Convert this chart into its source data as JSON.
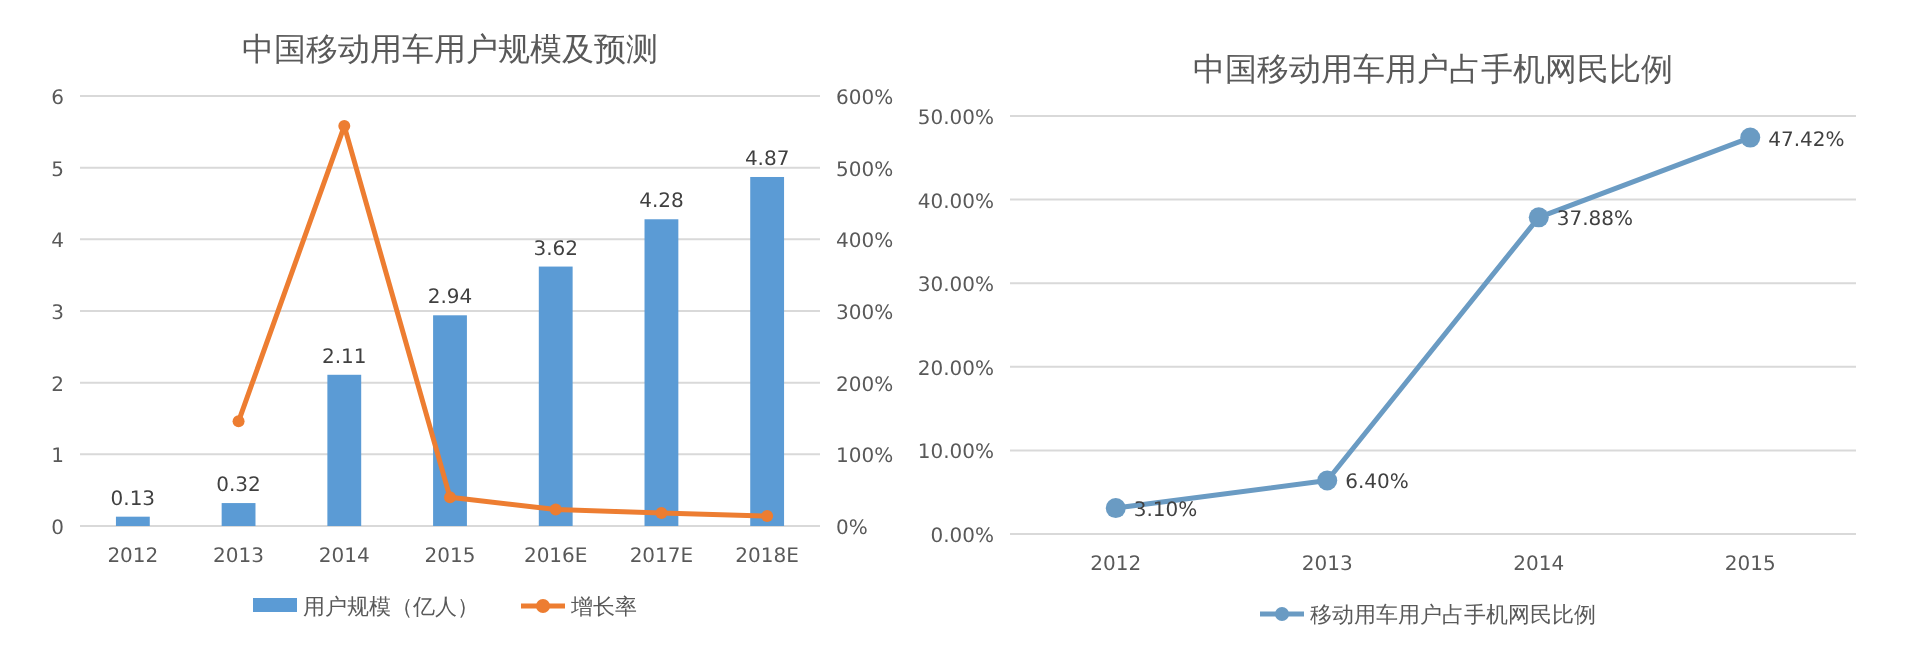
{
  "chart_data": [
    {
      "type": "bar",
      "title": "中国移动用车用户规模及预测",
      "categories": [
        "2012",
        "2013",
        "2014",
        "2015",
        "2016E",
        "2017E",
        "2018E"
      ],
      "series": [
        {
          "name": "用户规模（亿人）",
          "color": "#5b9bd5",
          "values": [
            0.13,
            0.32,
            2.11,
            2.94,
            3.62,
            4.28,
            4.87
          ],
          "value_labels": [
            "0.13",
            "0.32",
            "2.11",
            "2.94",
            "3.62",
            "4.28",
            "4.87"
          ]
        },
        {
          "name": "增长率",
          "type": "line",
          "axis": "y2",
          "color": "#ed7d31",
          "values": [
            null,
            146,
            558,
            40,
            23,
            18,
            14
          ]
        }
      ],
      "ylim": [
        0,
        6
      ],
      "yticks": [
        0,
        1,
        2,
        3,
        4,
        5,
        6
      ],
      "y2lim": [
        0,
        600
      ],
      "y2ticks": [
        {
          "value": 0,
          "label": "0%"
        },
        {
          "value": 100,
          "label": "100%"
        },
        {
          "value": 200,
          "label": "200%"
        },
        {
          "value": 300,
          "label": "300%"
        },
        {
          "value": 400,
          "label": "400%"
        },
        {
          "value": 500,
          "label": "500%"
        },
        {
          "value": 600,
          "label": "600%"
        }
      ],
      "grid": "y",
      "legend": "bottom",
      "marker": "circle"
    },
    {
      "type": "line",
      "title": "中国移动用车用户占手机网民比例",
      "categories": [
        "2012",
        "2013",
        "2014",
        "2015"
      ],
      "series": [
        {
          "name": "移动用车用户占手机网民比例",
          "color": "#6a9bc3",
          "values": [
            3.1,
            6.4,
            37.88,
            47.42
          ],
          "value_labels": [
            "3.10%",
            "6.40%",
            "37.88%",
            "47.42%"
          ]
        }
      ],
      "ylim": [
        0,
        50
      ],
      "yticks": [
        {
          "value": 0,
          "label": "0.00%"
        },
        {
          "value": 10,
          "label": "10.00%"
        },
        {
          "value": 20,
          "label": "20.00%"
        },
        {
          "value": 30,
          "label": "30.00%"
        },
        {
          "value": 40,
          "label": "40.00%"
        },
        {
          "value": 50,
          "label": "50.00%"
        }
      ],
      "grid": "y",
      "legend": "bottom",
      "marker": "circle"
    }
  ]
}
